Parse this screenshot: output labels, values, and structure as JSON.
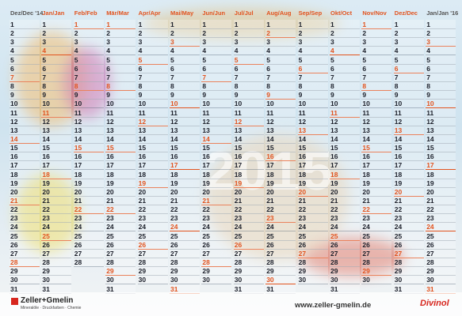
{
  "watermark": "2015",
  "day_numbers": [
    1,
    2,
    3,
    4,
    5,
    6,
    7,
    8,
    9,
    10,
    11,
    12,
    13,
    14,
    15,
    16,
    17,
    18,
    19,
    20,
    21,
    22,
    23,
    24,
    25,
    26,
    27,
    28,
    29,
    30,
    31
  ],
  "columns": [
    {
      "label": "Dez/Dec '14",
      "days": 31,
      "sundays": [
        7,
        14,
        21,
        28
      ]
    },
    {
      "label": "Jan/Jan",
      "days": 31,
      "sundays": [
        4,
        11,
        18,
        25
      ]
    },
    {
      "label": "Feb/Feb",
      "days": 28,
      "sundays": [
        1,
        8,
        15,
        22
      ]
    },
    {
      "label": "Mär/Mar",
      "days": 31,
      "sundays": [
        1,
        8,
        15,
        22,
        29
      ]
    },
    {
      "label": "Apr/Apr",
      "days": 30,
      "sundays": [
        5,
        12,
        19,
        26
      ]
    },
    {
      "label": "Mai/May",
      "days": 31,
      "sundays": [
        3,
        10,
        17,
        24,
        31
      ]
    },
    {
      "label": "Jun/Jun",
      "days": 30,
      "sundays": [
        7,
        14,
        21,
        28
      ]
    },
    {
      "label": "Jul/Jul",
      "days": 31,
      "sundays": [
        5,
        12,
        19,
        26
      ]
    },
    {
      "label": "Aug/Aug",
      "days": 31,
      "sundays": [
        2,
        9,
        16,
        23,
        30
      ]
    },
    {
      "label": "Sep/Sep",
      "days": 30,
      "sundays": [
        6,
        13,
        20,
        27
      ]
    },
    {
      "label": "Okt/Oct",
      "days": 31,
      "sundays": [
        4,
        11,
        18,
        25
      ]
    },
    {
      "label": "Nov/Nov",
      "days": 30,
      "sundays": [
        1,
        8,
        15,
        22,
        29
      ]
    },
    {
      "label": "Dez/Dec",
      "days": 31,
      "sundays": [
        6,
        13,
        20,
        27
      ]
    },
    {
      "label": "Jan/Jan '16",
      "days": 31,
      "sundays": [
        3,
        10,
        17,
        24,
        31
      ]
    }
  ],
  "footer": {
    "brand": "Zeller+Gmelin",
    "tagline": "Mineralöle · Druckfarben · Chemie",
    "url": "www.zeller-gmelin.de",
    "product": "Divinol"
  }
}
